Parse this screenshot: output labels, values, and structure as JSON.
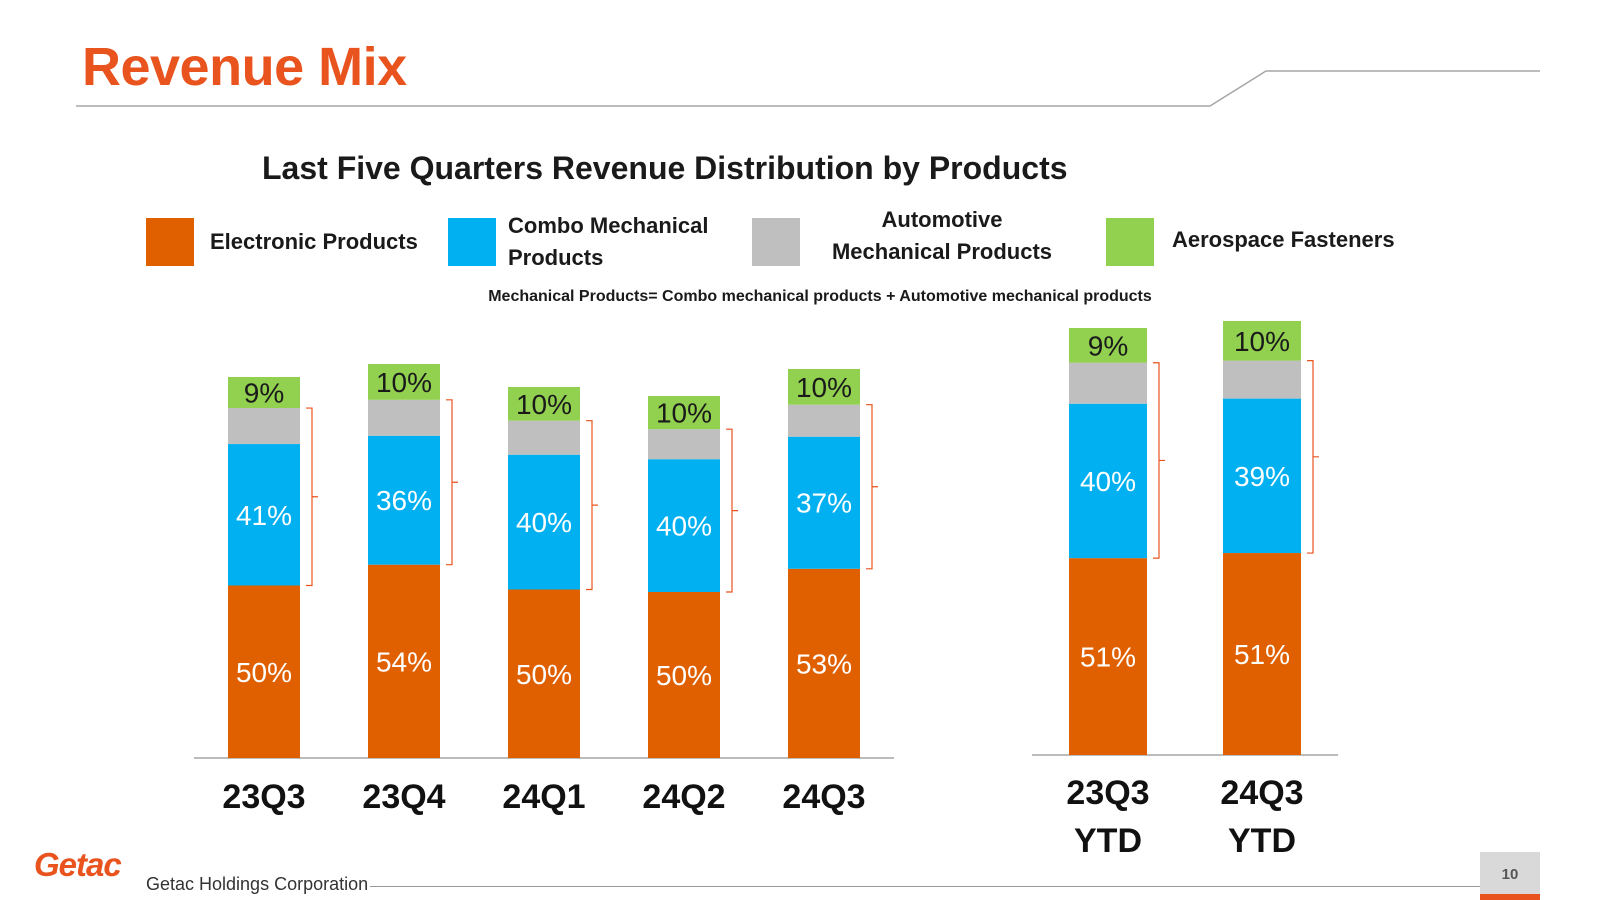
{
  "page": {
    "title": "Revenue Mix",
    "note": "Mechanical Products= Combo mechanical products + Automotive mechanical products",
    "footer": {
      "logo": "Getac",
      "company": "Getac Holdings Corporation",
      "page_number": "10"
    },
    "colors": {
      "accent": "#e8531e"
    }
  },
  "legend": [
    {
      "label": "Electronic Products",
      "color": "#e06000"
    },
    {
      "label": "Combo Mechanical Products",
      "color": "#00b0f0"
    },
    {
      "label": "Automotive Mechanical Products",
      "color": "#bfbfbf"
    },
    {
      "label": "Aerospace Fasteners",
      "color": "#92d050"
    }
  ],
  "chart_data": {
    "type": "bar",
    "stacked": true,
    "title": "Last Five Quarters Revenue Distribution by Products",
    "categories": [
      "23Q3",
      "23Q4",
      "24Q1",
      "24Q2",
      "24Q3",
      "23Q3 YTD",
      "24Q3 YTD"
    ],
    "groups": [
      {
        "name": "quarters",
        "categories": [
          "23Q3",
          "23Q4",
          "24Q1",
          "24Q2",
          "24Q3"
        ]
      },
      {
        "name": "ytd",
        "categories": [
          "23Q3 YTD",
          "24Q3 YTD"
        ]
      }
    ],
    "series": [
      {
        "name": "Electronic Products",
        "color": "#e06000",
        "values": [
          50,
          54,
          50,
          50,
          53,
          51,
          51
        ],
        "labels": [
          "50%",
          "54%",
          "50%",
          "50%",
          "53%",
          "51%",
          "51%"
        ]
      },
      {
        "name": "Combo Mechanical Products",
        "color": "#00b0f0",
        "values": [
          41,
          36,
          40,
          40,
          37,
          40,
          39
        ],
        "labels": [
          "41%",
          "36%",
          "40%",
          "40%",
          "37%",
          "40%",
          "39%"
        ]
      },
      {
        "name": "Automotive Mechanical Products",
        "color": "#bfbfbf",
        "values": [
          null,
          null,
          null,
          null,
          null,
          null,
          null
        ],
        "labels": [
          "",
          "",
          "",
          "",
          "",
          "",
          ""
        ]
      },
      {
        "name": "Aerospace Fasteners",
        "color": "#92d050",
        "values": [
          9,
          10,
          10,
          10,
          10,
          9,
          10
        ],
        "labels": [
          "9%",
          "10%",
          "10%",
          "10%",
          "10%",
          "9%",
          "10%"
        ]
      }
    ],
    "units": "%",
    "ylim": [
      0,
      100
    ]
  }
}
